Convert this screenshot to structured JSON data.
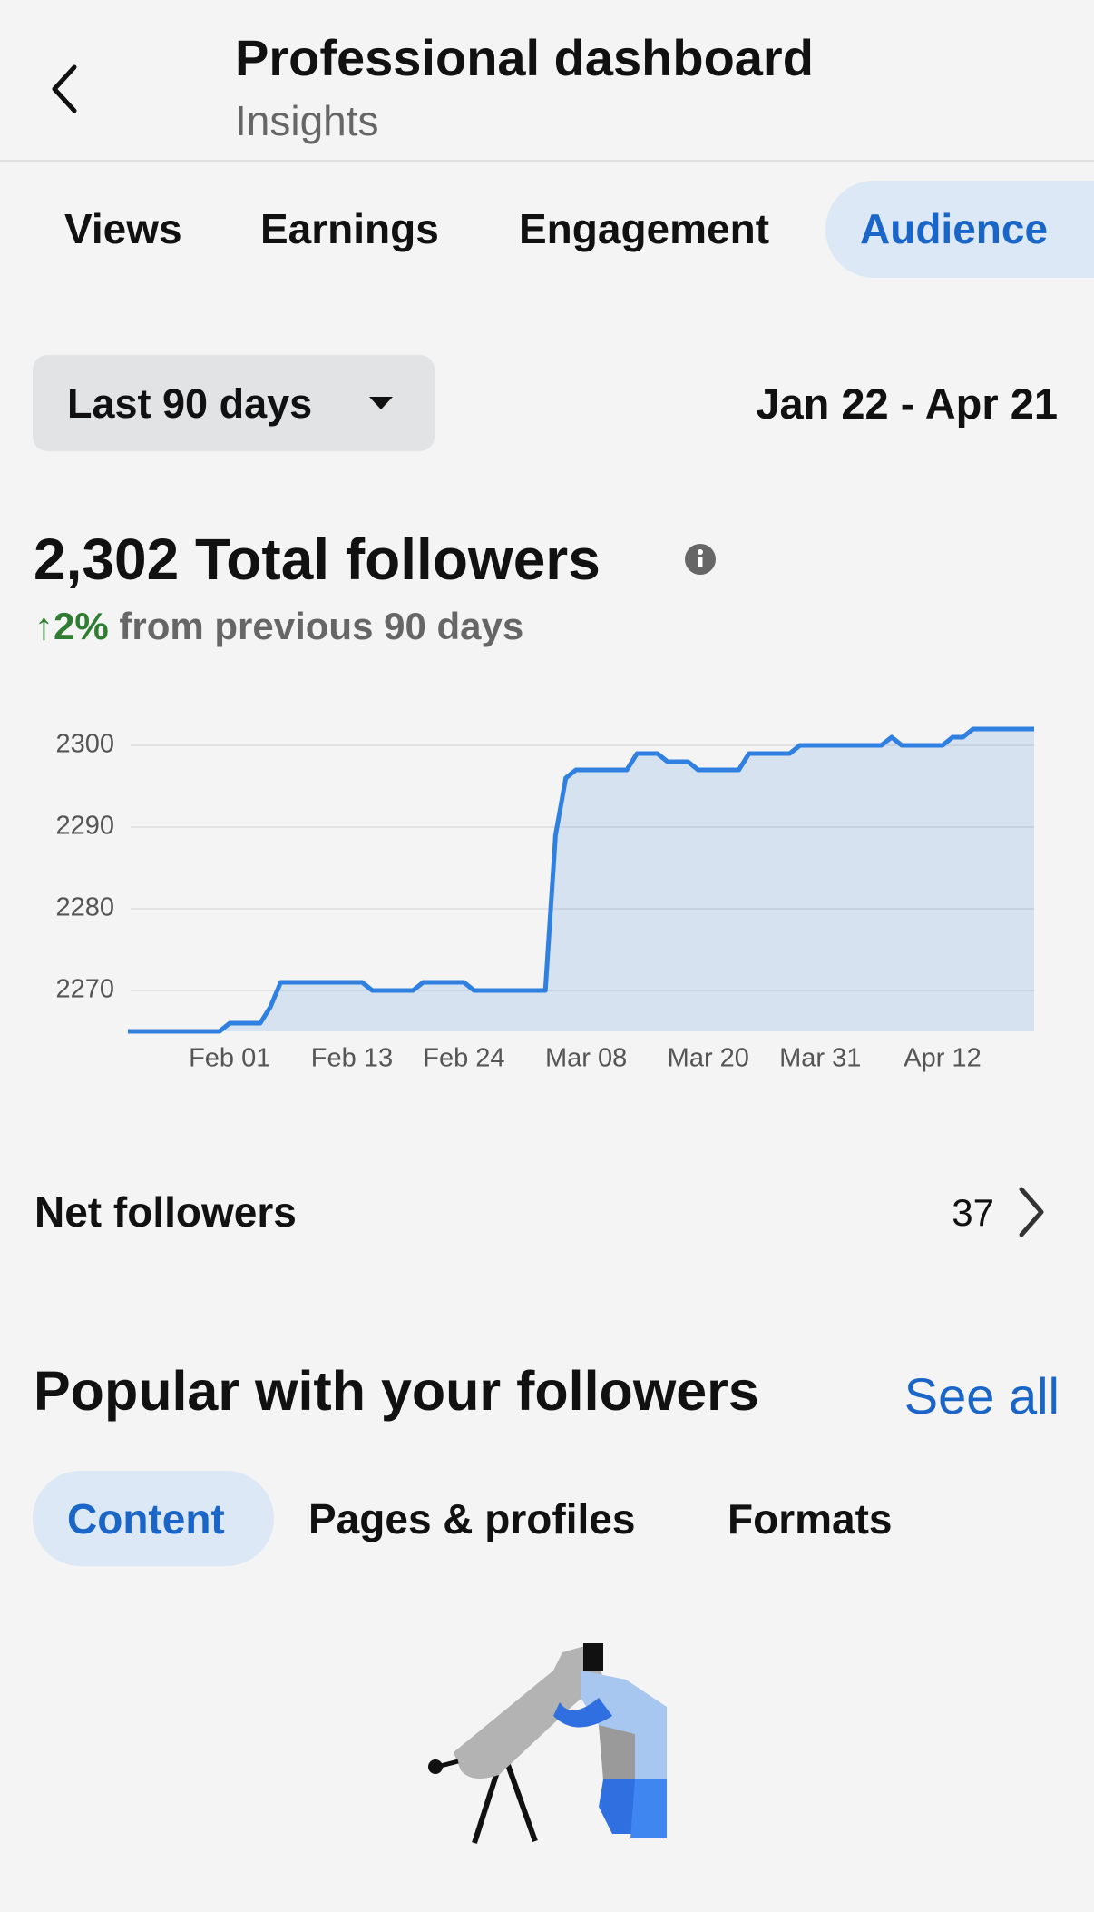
{
  "header": {
    "title": "Professional dashboard",
    "subtitle": "Insights"
  },
  "tabs": [
    "Views",
    "Earnings",
    "Engagement",
    "Audience"
  ],
  "period": {
    "selector": "Last 90 days",
    "range": "Jan 22 - Apr 21"
  },
  "summary": {
    "headline": "2,302 Total followers",
    "change": "↑2%",
    "change_text": "from previous 90 days"
  },
  "chart_data": {
    "type": "area",
    "color": "#2f80e0",
    "grid": true,
    "ylim": [
      2265,
      2302
    ],
    "yticks": [
      2270,
      2280,
      2290,
      2300
    ],
    "categories": [
      null,
      null,
      null,
      null,
      null,
      null,
      null,
      null,
      null,
      null,
      "Feb 01",
      null,
      null,
      null,
      null,
      null,
      null,
      null,
      null,
      null,
      null,
      null,
      "Feb 13",
      null,
      null,
      null,
      null,
      null,
      null,
      null,
      null,
      null,
      null,
      "Feb 24",
      null,
      null,
      null,
      null,
      null,
      null,
      null,
      null,
      null,
      null,
      null,
      "Mar 08",
      null,
      null,
      null,
      null,
      null,
      null,
      null,
      null,
      null,
      null,
      null,
      "Mar 20",
      null,
      null,
      null,
      null,
      null,
      null,
      null,
      null,
      null,
      null,
      "Mar 31",
      null,
      null,
      null,
      null,
      null,
      null,
      null,
      null,
      null,
      null,
      null,
      "Apr 12",
      null,
      null,
      null,
      null,
      null,
      null,
      null,
      null,
      null
    ],
    "values": [
      2265,
      2265,
      2265,
      2265,
      2265,
      2265,
      2265,
      2265,
      2265,
      2265,
      2266,
      2266,
      2266,
      2266,
      2268,
      2271,
      2271,
      2271,
      2271,
      2271,
      2271,
      2271,
      2271,
      2271,
      2270,
      2270,
      2270,
      2270,
      2270,
      2271,
      2271,
      2271,
      2271,
      2271,
      2270,
      2270,
      2270,
      2270,
      2270,
      2270,
      2270,
      2270,
      2289,
      2296,
      2297,
      2297,
      2297,
      2297,
      2297,
      2297,
      2299,
      2299,
      2299,
      2298,
      2298,
      2298,
      2297,
      2297,
      2297,
      2297,
      2297,
      2299,
      2299,
      2299,
      2299,
      2299,
      2300,
      2300,
      2300,
      2300,
      2300,
      2300,
      2300,
      2300,
      2300,
      2301,
      2300,
      2300,
      2300,
      2300,
      2300,
      2301,
      2301,
      2302,
      2302,
      2302,
      2302,
      2302,
      2302,
      2302
    ]
  },
  "net_followers": {
    "label": "Net followers",
    "value": 37
  },
  "popular": {
    "title": "Popular with your followers",
    "link": "See all",
    "tabs": [
      "Content",
      "Pages & profiles",
      "Formats"
    ]
  }
}
